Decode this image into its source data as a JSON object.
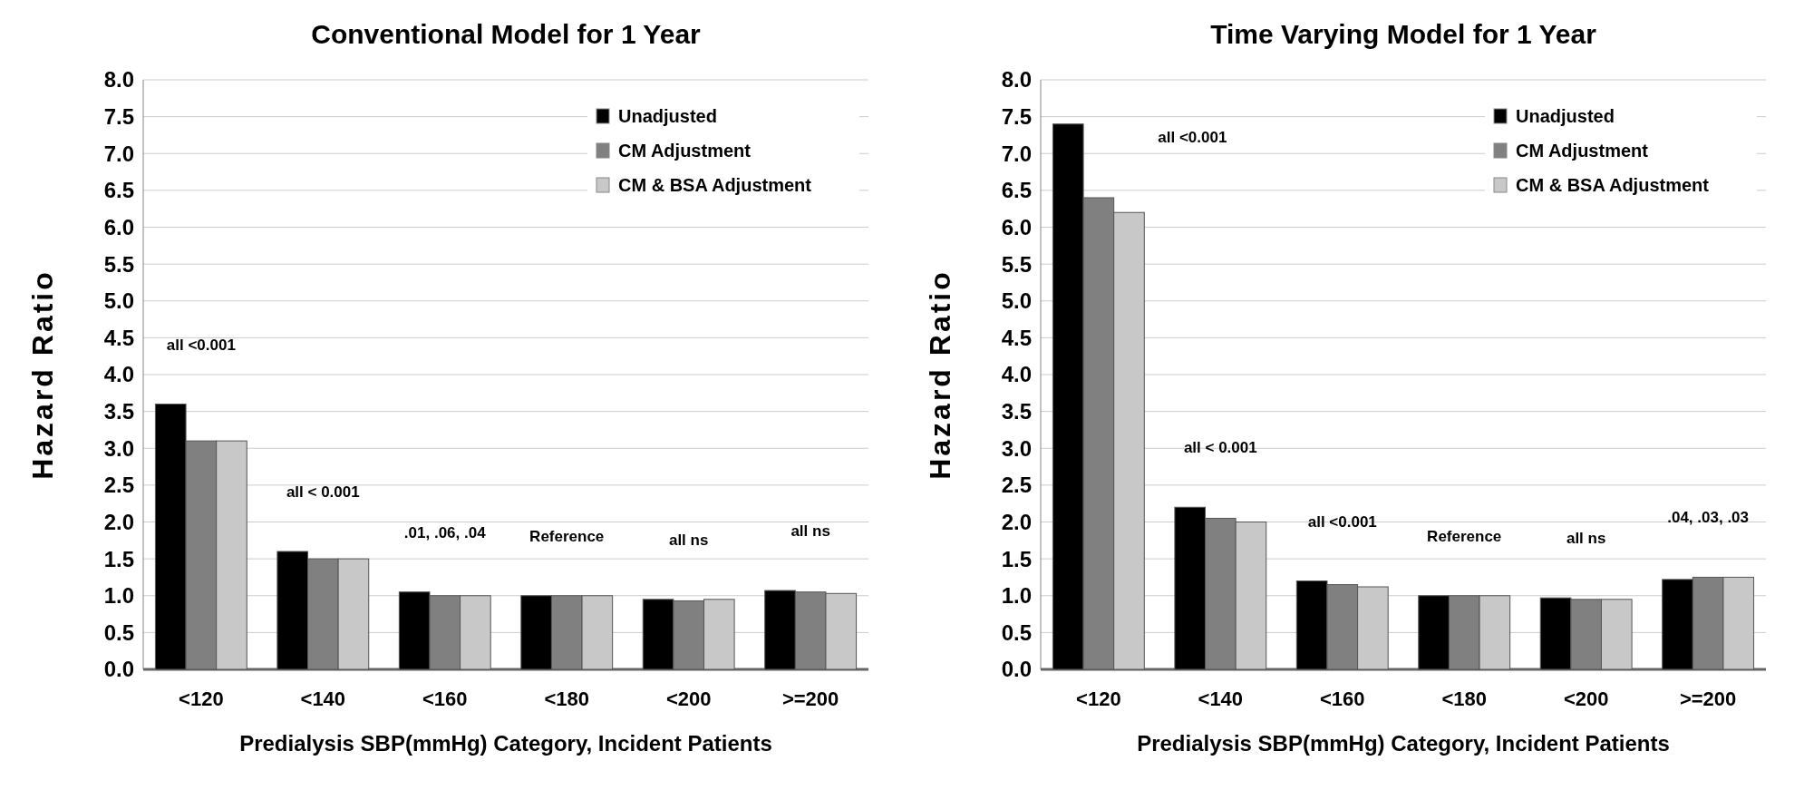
{
  "chart_data": [
    {
      "type": "bar",
      "title": "Conventional Model for 1 Year",
      "xlabel": "Predialysis SBP(mmHg) Category, Incident Patients",
      "ylabel": "Hazard Ratio",
      "categories": [
        "<120",
        "<140",
        "<160",
        "<180",
        "<200",
        ">=200"
      ],
      "series": [
        {
          "name": "Unadjusted",
          "color": "#000000",
          "values": [
            3.6,
            1.6,
            1.05,
            1.0,
            0.95,
            1.07
          ]
        },
        {
          "name": "CM Adjustment",
          "color": "#808080",
          "values": [
            3.1,
            1.5,
            1.0,
            1.0,
            0.93,
            1.05
          ]
        },
        {
          "name": "CM & BSA Adjustment",
          "color": "#c8c8c8",
          "values": [
            3.1,
            1.5,
            1.0,
            1.0,
            0.95,
            1.03
          ]
        }
      ],
      "ylim": [
        0,
        8
      ],
      "yticks": [
        {
          "value": 0,
          "label": "0.0"
        },
        {
          "value": 0.5,
          "label": "0.5"
        },
        {
          "value": 1,
          "label": "1.0"
        },
        {
          "value": 1.5,
          "label": "1.5"
        },
        {
          "value": 2,
          "label": "2.0"
        },
        {
          "value": 2.5,
          "label": "2.5"
        },
        {
          "value": 3,
          "label": "3.0"
        },
        {
          "value": 3.5,
          "label": "3.5"
        },
        {
          "value": 4,
          "label": "4.0"
        },
        {
          "value": 4.5,
          "label": "4.5"
        },
        {
          "value": 5,
          "label": "5.0"
        },
        {
          "value": 5.5,
          "label": "5.5"
        },
        {
          "value": 6,
          "label": "6.0"
        },
        {
          "value": 6.5,
          "label": "6.5"
        },
        {
          "value": 7,
          "label": "7.0"
        },
        {
          "value": 7.5,
          "label": "7.5"
        },
        {
          "value": 8,
          "label": "8.0"
        }
      ],
      "grid": "y",
      "legend": "top right",
      "annotations": [
        "all <0.001",
        "all < 0.001",
        ".01, .06, .04",
        "Reference",
        "all ns",
        "all ns"
      ]
    },
    {
      "type": "bar",
      "title": "Time Varying Model for 1 Year",
      "xlabel": "Predialysis SBP(mmHg) Category, Incident Patients",
      "ylabel": "Hazard Ratio",
      "categories": [
        "<120",
        "<140",
        "<160",
        "<180",
        "<200",
        ">=200"
      ],
      "series": [
        {
          "name": "Unadjusted",
          "color": "#000000",
          "values": [
            7.4,
            2.2,
            1.2,
            1.0,
            0.97,
            1.22
          ]
        },
        {
          "name": "CM Adjustment",
          "color": "#808080",
          "values": [
            6.4,
            2.05,
            1.15,
            1.0,
            0.95,
            1.25
          ]
        },
        {
          "name": "CM & BSA Adjustment",
          "color": "#c8c8c8",
          "values": [
            6.2,
            2.0,
            1.12,
            1.0,
            0.95,
            1.25
          ]
        }
      ],
      "ylim": [
        0,
        8
      ],
      "yticks": [
        {
          "value": 0,
          "label": "0.0"
        },
        {
          "value": 0.5,
          "label": "0.5"
        },
        {
          "value": 1,
          "label": "1.0"
        },
        {
          "value": 1.5,
          "label": "1.5"
        },
        {
          "value": 2,
          "label": "2.0"
        },
        {
          "value": 2.5,
          "label": "2.5"
        },
        {
          "value": 3,
          "label": "3.0"
        },
        {
          "value": 3.5,
          "label": "3.5"
        },
        {
          "value": 4,
          "label": "4.0"
        },
        {
          "value": 4.5,
          "label": "4.5"
        },
        {
          "value": 5,
          "label": "5.0"
        },
        {
          "value": 5.5,
          "label": "5.5"
        },
        {
          "value": 6,
          "label": "6.0"
        },
        {
          "value": 6.5,
          "label": "6.5"
        },
        {
          "value": 7,
          "label": "7.0"
        },
        {
          "value": 7.5,
          "label": "7.5"
        },
        {
          "value": 8,
          "label": "8.0"
        }
      ],
      "grid": "y",
      "legend": "top right",
      "annotations": [
        "all <0.001",
        "all < 0.001",
        "all <0.001",
        "Reference",
        "all ns",
        ".04, .03, .03"
      ]
    }
  ]
}
